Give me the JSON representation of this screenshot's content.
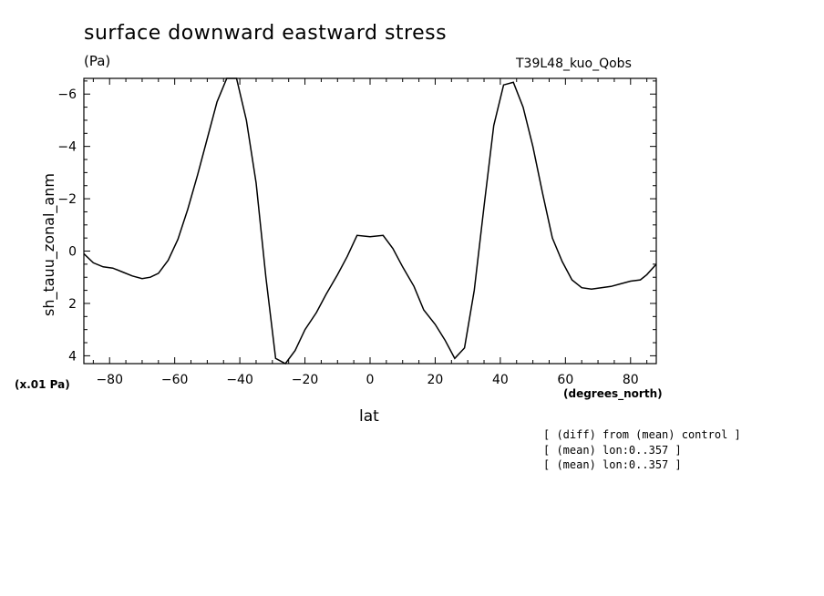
{
  "header": {
    "title": "surface downward eastward stress",
    "units": "(Pa)",
    "run_label": "T39L48_kuo_Qobs",
    "scale_note": "(x.01 Pa)"
  },
  "annotations": [
    "[ (diff) from (mean) control ]",
    "[ (mean) lon:0..357 ]",
    "[ (mean) lon:0..357 ]"
  ],
  "chart_data": {
    "type": "line",
    "xlabel": "lat",
    "xunits": "(degrees_north)",
    "ylabel": "sh_tauu_zonal_anm",
    "xlim": [
      -87.9,
      87.9
    ],
    "ylim": [
      4.3,
      -6.6
    ],
    "y_inverted": true,
    "grid": false,
    "x_ticks": [
      -80,
      -60,
      -40,
      -20,
      0,
      20,
      40,
      60,
      80
    ],
    "y_ticks": [
      -6,
      -4,
      -2,
      0,
      2,
      4
    ],
    "x_tick_labels": [
      "−80",
      "−60",
      "−40",
      "−20",
      "0",
      "20",
      "40",
      "60",
      "80"
    ],
    "y_tick_labels": [
      "−6",
      "−4",
      "−2",
      "0",
      "2",
      "4"
    ],
    "series": [
      {
        "color": "#000000",
        "x": [
          -87.9,
          -85,
          -82,
          -79,
          -76,
          -73,
          -70,
          -67.5,
          -65,
          -62,
          -59,
          -56,
          -53,
          -50,
          -47,
          -44,
          -41,
          -38,
          -35,
          -32,
          -29,
          -26,
          -23,
          -20,
          -16.5,
          -13.5,
          -10,
          -7,
          -4,
          0,
          4,
          7,
          10,
          13.5,
          16.5,
          20,
          23,
          26,
          29,
          32,
          35,
          38,
          41,
          44,
          47,
          50,
          53,
          56,
          59,
          62,
          65,
          68,
          71,
          74,
          77,
          80,
          83,
          85,
          87.9
        ],
        "y": [
          0.1,
          0.45,
          0.6,
          0.65,
          0.8,
          0.95,
          1.05,
          1.0,
          0.85,
          0.35,
          -0.45,
          -1.6,
          -2.9,
          -4.3,
          -5.7,
          -6.6,
          -6.6,
          -5.0,
          -2.6,
          1.0,
          4.1,
          4.35,
          3.8,
          3.0,
          2.35,
          1.65,
          0.9,
          0.2,
          -0.6,
          -0.55,
          -0.6,
          -0.1,
          0.6,
          1.35,
          2.25,
          2.8,
          3.4,
          4.1,
          3.7,
          1.5,
          -1.7,
          -4.8,
          -6.35,
          -6.45,
          -5.5,
          -4.0,
          -2.2,
          -0.5,
          0.4,
          1.1,
          1.4,
          1.45,
          1.4,
          1.35,
          1.25,
          1.15,
          1.1,
          0.9,
          0.5
        ]
      }
    ]
  }
}
